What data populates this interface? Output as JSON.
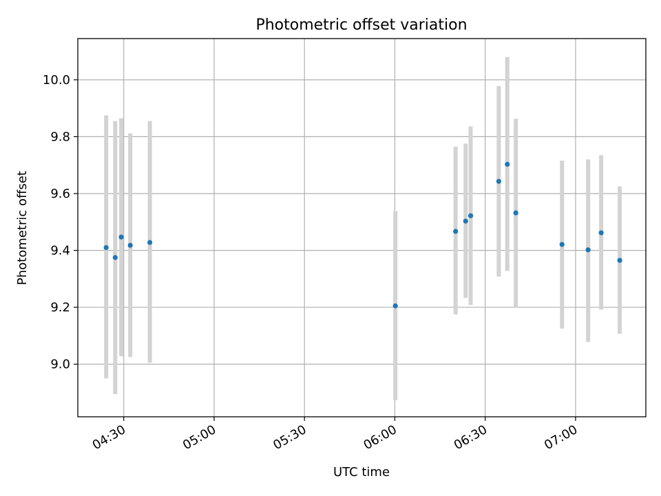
{
  "chart_data": {
    "type": "scatter",
    "title": "Photometric offset variation",
    "xlabel": "UTC time",
    "ylabel": "Photometric offset",
    "grid": true,
    "x_ticks": [
      "04:30",
      "05:00",
      "05:30",
      "06:00",
      "06:30",
      "07:00"
    ],
    "y_ticks": [
      "9.0",
      "9.2",
      "9.4",
      "9.6",
      "9.8",
      "10.0"
    ],
    "xlim": [
      "04:14:45",
      "07:23:20"
    ],
    "ylim": [
      8.815,
      10.145
    ],
    "colors": {
      "point": "#1f77b4",
      "errorbar": "#d3d3d3",
      "grid": "#b0b0b0"
    },
    "series": [
      {
        "points": [
          {
            "x": "04:24:10",
            "y": 9.41,
            "low": 8.95,
            "high": 9.875
          },
          {
            "x": "04:27:10",
            "y": 9.375,
            "low": 8.895,
            "high": 9.855
          },
          {
            "x": "04:29:10",
            "y": 9.447,
            "low": 9.028,
            "high": 9.865
          },
          {
            "x": "04:32:10",
            "y": 9.418,
            "low": 9.025,
            "high": 9.812
          },
          {
            "x": "04:38:40",
            "y": 9.428,
            "low": 9.005,
            "high": 9.855
          },
          {
            "x": "06:00:10",
            "y": 9.205,
            "low": 8.873,
            "high": 9.538
          },
          {
            "x": "06:20:10",
            "y": 9.467,
            "low": 9.175,
            "high": 9.765
          },
          {
            "x": "06:23:30",
            "y": 9.503,
            "low": 9.233,
            "high": 9.776
          },
          {
            "x": "06:25:10",
            "y": 9.522,
            "low": 9.208,
            "high": 9.836
          },
          {
            "x": "06:34:30",
            "y": 9.643,
            "low": 9.308,
            "high": 9.978
          },
          {
            "x": "06:37:20",
            "y": 9.703,
            "low": 9.328,
            "high": 10.08
          },
          {
            "x": "06:40:10",
            "y": 9.532,
            "low": 9.2,
            "high": 9.863
          },
          {
            "x": "06:55:30",
            "y": 9.421,
            "low": 9.125,
            "high": 9.716
          },
          {
            "x": "07:04:10",
            "y": 9.402,
            "low": 9.078,
            "high": 9.72
          },
          {
            "x": "07:08:30",
            "y": 9.462,
            "low": 9.192,
            "high": 9.735
          },
          {
            "x": "07:14:40",
            "y": 9.365,
            "low": 9.107,
            "high": 9.625
          }
        ]
      }
    ]
  }
}
